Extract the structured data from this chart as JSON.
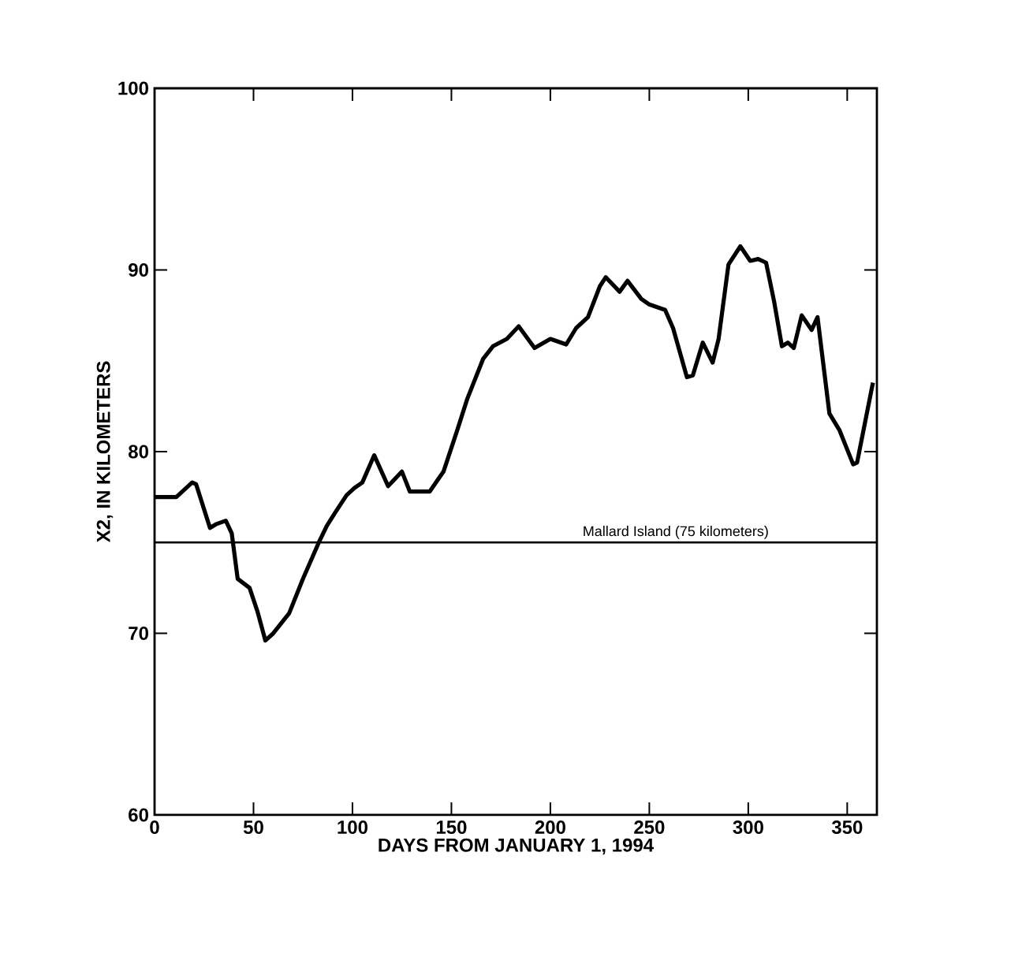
{
  "chart_data": {
    "type": "line",
    "xlabel": "DAYS FROM JANUARY 1, 1994",
    "ylabel": "X2, IN KILOMETERS",
    "x": [
      0,
      11,
      19,
      21,
      28,
      31,
      36,
      39,
      42,
      48,
      52,
      56,
      60,
      68,
      75,
      83,
      87,
      91,
      97,
      101,
      105,
      111,
      118,
      125,
      129,
      139,
      146,
      153,
      158,
      166,
      171,
      178,
      184,
      192,
      200,
      208,
      213,
      219,
      225,
      228,
      235,
      239,
      246,
      250,
      258,
      262,
      269,
      272,
      277,
      282,
      285,
      290,
      296,
      301,
      305,
      309,
      313,
      317,
      320,
      323,
      327,
      332,
      335,
      341,
      346,
      353,
      355,
      363
    ],
    "series": [
      {
        "color": "#000000",
        "values": [
          77.5,
          77.5,
          78.3,
          78.2,
          75.8,
          76.0,
          76.2,
          75.5,
          73.0,
          72.5,
          71.2,
          69.6,
          70.0,
          71.1,
          73.0,
          75.0,
          75.9,
          76.6,
          77.6,
          78.0,
          78.3,
          79.8,
          78.1,
          78.9,
          77.8,
          77.8,
          78.9,
          81.2,
          82.9,
          85.1,
          85.8,
          86.2,
          86.9,
          85.7,
          86.2,
          85.9,
          86.8,
          87.4,
          89.1,
          89.6,
          88.8,
          89.4,
          88.4,
          88.1,
          87.8,
          86.8,
          84.1,
          84.2,
          86.0,
          84.9,
          86.2,
          90.3,
          91.3,
          90.5,
          90.6,
          90.4,
          88.3,
          85.8,
          86.0,
          85.7,
          87.5,
          86.7,
          87.4,
          82.1,
          81.2,
          79.3,
          79.4,
          83.8
        ]
      }
    ],
    "xlim": [
      0,
      365
    ],
    "ylim": [
      60,
      100
    ],
    "xticks": [
      0,
      50,
      100,
      150,
      200,
      250,
      300,
      350
    ],
    "yticks": [
      60,
      70,
      80,
      90,
      100
    ],
    "grid": false,
    "line_style": "solid",
    "marker": "none",
    "ref_lines": [
      {
        "axis": "y",
        "value": 75,
        "label": "Mallard Island (75 kilometers)",
        "color": "#000000"
      }
    ]
  }
}
